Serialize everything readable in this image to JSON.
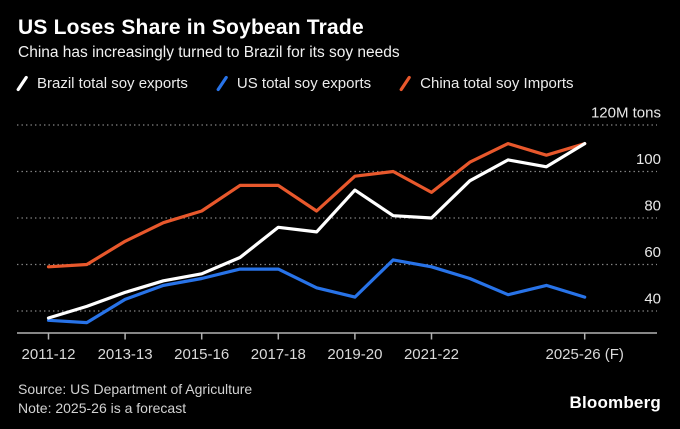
{
  "header": {
    "title": "US Loses Share in Soybean Trade",
    "subtitle": "China has increasingly turned to Brazil for its soy needs"
  },
  "legend": [
    {
      "label": "Brazil total soy exports",
      "color": "#ffffff"
    },
    {
      "label": "US total soy exports",
      "color": "#2873e8"
    },
    {
      "label": "China total soy Imports",
      "color": "#e8582c"
    }
  ],
  "footer": {
    "source": "Source: US Department of Agriculture",
    "note": "Note: 2025-26 is a forecast",
    "brand": "Bloomberg"
  },
  "chart_data": {
    "type": "line",
    "title": "US Loses Share in Soybean Trade",
    "unit_label": "120M tons",
    "n_points": 15,
    "x_tick_labels": [
      {
        "index": 0,
        "label": "2011-12"
      },
      {
        "index": 2,
        "label": "2013-13"
      },
      {
        "index": 4,
        "label": "2015-16"
      },
      {
        "index": 6,
        "label": "2017-18"
      },
      {
        "index": 8,
        "label": "2019-20"
      },
      {
        "index": 10,
        "label": "2021-22"
      },
      {
        "index": 14,
        "label": "2025-26 (F)"
      }
    ],
    "y_gridlines": [
      40,
      60,
      80,
      100,
      120
    ],
    "ylim": [
      30.5,
      120
    ],
    "grid": true,
    "legend_position": "top",
    "series": [
      {
        "name": "Brazil total soy exports",
        "color": "#ffffff",
        "values": [
          37,
          42,
          48,
          53,
          56,
          63,
          76,
          74,
          92,
          81,
          80,
          96,
          105,
          102,
          112
        ]
      },
      {
        "name": "US total soy exports",
        "color": "#2873e8",
        "values": [
          36,
          35,
          45,
          51,
          54,
          58,
          58,
          50,
          46,
          62,
          59,
          54,
          47,
          51,
          46
        ]
      },
      {
        "name": "China total soy Imports",
        "color": "#e8582c",
        "values": [
          59,
          60,
          70,
          78,
          83,
          94,
          94,
          83,
          98,
          100,
          91,
          104,
          112,
          107,
          112
        ]
      }
    ]
  }
}
